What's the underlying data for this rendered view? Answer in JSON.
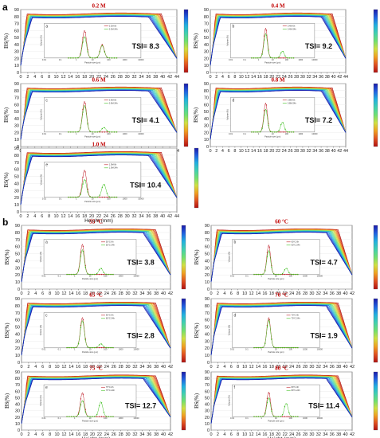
{
  "figure": {
    "section_labels": [
      "a",
      "b"
    ],
    "colorbar_colors": [
      "#1a1aa8",
      "#2060e0",
      "#20b0e0",
      "#40d0b0",
      "#70e070",
      "#d0e040",
      "#f0a020",
      "#e05020",
      "#b01010"
    ],
    "inset_marker_colors": {
      "zero_h": "#c0202a",
      "twentyfour_h": "#40c020"
    }
  },
  "chart_data": [
    {
      "type": "line",
      "section": "a",
      "panel_title": "0.2 M",
      "inset_letter": "a",
      "tsi_label": "TSI= 8.3",
      "xlabel": "",
      "ylabel": "BS(%)",
      "x_ticks": [
        0,
        2,
        4,
        6,
        8,
        10,
        12,
        14,
        16,
        18,
        20,
        22,
        24,
        26,
        28,
        30,
        32,
        34,
        36,
        38,
        40,
        42,
        44
      ],
      "y_ticks": [
        0,
        10,
        20,
        30,
        40,
        50,
        60,
        70,
        80,
        90
      ],
      "xlim": [
        0,
        44
      ],
      "ylim": [
        0,
        90
      ],
      "inset": {
        "type": "line",
        "xlabel": "Particle size (μm)",
        "ylabel": "Volume (%)",
        "x_ticks": [
          "0.01",
          "0.1",
          "1",
          "10",
          "100",
          "1000",
          "10000"
        ],
        "legend": [
          "0.2M-0h",
          "0.2M-24h"
        ],
        "series": [
          {
            "name": "0.2M-0h",
            "peaks": [
              {
                "x_log10": 0.5,
                "y": 7.2
              },
              {
                "x_log10": 1.6,
                "y": 3.5
              }
            ]
          },
          {
            "name": "0.2M-24h",
            "peaks": [
              {
                "x_log10": 0.5,
                "y": 5.6
              },
              {
                "x_log10": 1.6,
                "y": 3.2
              }
            ]
          }
        ]
      }
    },
    {
      "type": "line",
      "section": "a",
      "panel_title": "0.4 M",
      "inset_letter": "b",
      "tsi_label": "TSI= 9.2",
      "xlabel": "",
      "ylabel": "BS(%)",
      "x_ticks": [
        0,
        2,
        4,
        6,
        8,
        10,
        12,
        14,
        16,
        18,
        20,
        22,
        24,
        26,
        28,
        30,
        32,
        34,
        36,
        38,
        40,
        42,
        44
      ],
      "y_ticks": [
        0,
        10,
        20,
        30,
        40,
        50,
        60,
        70,
        80,
        90
      ],
      "xlim": [
        0,
        44
      ],
      "ylim": [
        0,
        90
      ],
      "inset": {
        "type": "line",
        "xlabel": "Particle size (μm)",
        "ylabel": "Volume (%)",
        "x_ticks": [
          "0.01",
          "0.1",
          "1",
          "10",
          "100",
          "1000",
          "10000"
        ],
        "legend": [
          "0.4M-0h",
          "0.4M-24h"
        ],
        "series": [
          {
            "name": "0.4M-0h",
            "peaks": [
              {
                "x_log10": 0.5,
                "y": 7.8
              }
            ]
          },
          {
            "name": "0.4M-24h",
            "peaks": [
              {
                "x_log10": 0.5,
                "y": 6.4
              },
              {
                "x_log10": 1.7,
                "y": 1.8
              }
            ]
          }
        ]
      }
    },
    {
      "type": "line",
      "section": "a",
      "panel_title": "0.6 M",
      "inset_letter": "c",
      "tsi_label": "TSI= 4.1",
      "xlabel": "",
      "ylabel": "BS(%)",
      "x_ticks": [
        0,
        2,
        4,
        6,
        8,
        10,
        12,
        14,
        16,
        18,
        20,
        22,
        24,
        26,
        28,
        30,
        32,
        34,
        36,
        38,
        40,
        42,
        44
      ],
      "y_ticks": [
        0,
        10,
        20,
        30,
        40,
        50,
        60,
        70,
        80,
        90
      ],
      "xlim": [
        0,
        44
      ],
      "ylim": [
        0,
        90
      ],
      "inset": {
        "type": "line",
        "xlabel": "Particle size (μm)",
        "ylabel": "Volume (%)",
        "x_ticks": [
          "0.01",
          "0.1",
          "1",
          "10",
          "100",
          "1000",
          "10000"
        ],
        "legend": [
          "0.6M-0h",
          "0.6M-24h"
        ],
        "series": [
          {
            "name": "0.6M-0h",
            "peaks": [
              {
                "x_log10": 0.5,
                "y": 8.0
              }
            ]
          },
          {
            "name": "0.6M-24h",
            "peaks": [
              {
                "x_log10": 0.5,
                "y": 7.0
              },
              {
                "x_log10": 1.7,
                "y": 1.2
              }
            ]
          }
        ]
      }
    },
    {
      "type": "line",
      "section": "a",
      "panel_title": "0.8 M",
      "inset_letter": "d",
      "tsi_label": "TSI= 7.2",
      "xlabel": "",
      "ylabel": "BS(%)",
      "x_ticks": [
        0,
        2,
        4,
        6,
        8,
        10,
        12,
        14,
        16,
        18,
        20,
        22,
        24,
        26,
        28,
        30,
        32,
        34,
        36,
        38,
        40,
        42,
        44
      ],
      "y_ticks": [
        0,
        10,
        20,
        30,
        40,
        50,
        60,
        70,
        80,
        90
      ],
      "xlim": [
        0,
        44
      ],
      "ylim": [
        0,
        90
      ],
      "inset": {
        "type": "line",
        "xlabel": "Particle size (μm)",
        "ylabel": "Volume (%)",
        "x_ticks": [
          "0.01",
          "0.1",
          "1",
          "10",
          "100",
          "1000",
          "10000"
        ],
        "legend": [
          "0.8M-0h",
          "0.8M-24h"
        ],
        "series": [
          {
            "name": "0.8M-0h",
            "peaks": [
              {
                "x_log10": 0.5,
                "y": 7.6
              }
            ]
          },
          {
            "name": "0.8M-24h",
            "peaks": [
              {
                "x_log10": 0.5,
                "y": 6.0
              },
              {
                "x_log10": 1.7,
                "y": 2.6
              }
            ]
          }
        ]
      }
    },
    {
      "type": "line",
      "section": "a",
      "panel_title": "1.0 M",
      "inset_letter": "e",
      "tsi_label": "TSI= 10.4",
      "xlabel": "Height (mm)",
      "ylabel": "BS(%)",
      "x_ticks": [
        0,
        2,
        4,
        6,
        8,
        10,
        12,
        14,
        16,
        18,
        20,
        22,
        24,
        26,
        28,
        30,
        32,
        34,
        36,
        38,
        40,
        42,
        44
      ],
      "y_ticks": [
        0,
        10,
        20,
        30,
        40,
        50,
        60,
        70,
        80,
        90
      ],
      "xlim": [
        0,
        44
      ],
      "ylim": [
        0,
        90
      ],
      "inset": {
        "type": "line",
        "xlabel": "Particle size (μm)",
        "ylabel": "Volume (%)",
        "x_ticks": [
          "0.01",
          "0.1",
          "1",
          "10",
          "100",
          "1000",
          "10000"
        ],
        "legend": [
          "1.0M-0h",
          "1.0M-24h"
        ],
        "series": [
          {
            "name": "1.0M-0h",
            "peaks": [
              {
                "x_log10": 0.5,
                "y": 7.0
              }
            ]
          },
          {
            "name": "1.0M-24h",
            "peaks": [
              {
                "x_log10": 0.5,
                "y": 4.6
              },
              {
                "x_log10": 1.7,
                "y": 3.4
              }
            ]
          }
        ]
      }
    },
    {
      "type": "line",
      "section": "b",
      "panel_title": "55 °C",
      "inset_letter": "a",
      "tsi_label": "TSI= 3.8",
      "xlabel": "",
      "ylabel": "BS(%)",
      "x_ticks": [
        0,
        2,
        4,
        6,
        8,
        10,
        12,
        14,
        16,
        18,
        20,
        22,
        24,
        26,
        28,
        30,
        32,
        34,
        36,
        38,
        40,
        42
      ],
      "y_ticks": [
        0,
        10,
        20,
        30,
        40,
        50,
        60,
        70,
        80,
        90
      ],
      "xlim": [
        0,
        42
      ],
      "ylim": [
        0,
        90
      ],
      "inset": {
        "type": "line",
        "xlabel": "Particle size (μm)",
        "ylabel": "Volume (%)",
        "x_ticks": [
          "0.01",
          "0.1",
          "1",
          "10",
          "100",
          "1000",
          "10000"
        ],
        "legend": [
          "55°C-0h",
          "55°C-24h"
        ],
        "series": [
          {
            "name": "55°C-0h",
            "peaks": [
              {
                "x_log10": 0.5,
                "y": 7.8
              }
            ]
          },
          {
            "name": "55°C-24h",
            "peaks": [
              {
                "x_log10": 0.5,
                "y": 6.4
              },
              {
                "x_log10": 1.7,
                "y": 1.6
              }
            ]
          }
        ]
      }
    },
    {
      "type": "line",
      "section": "b",
      "panel_title": "60 °C",
      "inset_letter": "b",
      "tsi_label": "TSI= 4.7",
      "xlabel": "",
      "ylabel": "BS(%)",
      "x_ticks": [
        0,
        2,
        4,
        6,
        8,
        10,
        12,
        14,
        16,
        18,
        20,
        22,
        24,
        26,
        28,
        30,
        32,
        34,
        36,
        38,
        40,
        42
      ],
      "y_ticks": [
        0,
        10,
        20,
        30,
        40,
        50,
        60,
        70,
        80,
        90
      ],
      "xlim": [
        0,
        42
      ],
      "ylim": [
        0,
        90
      ],
      "inset": {
        "type": "line",
        "xlabel": "Particle size (μm)",
        "ylabel": "Volume (%)",
        "x_ticks": [
          "0.01",
          "0.1",
          "1",
          "10",
          "100",
          "1000",
          "10000"
        ],
        "legend": [
          "60°C-0h",
          "60°C-24h"
        ],
        "series": [
          {
            "name": "60°C-0h",
            "peaks": [
              {
                "x_log10": 0.5,
                "y": 7.6
              }
            ]
          },
          {
            "name": "60°C-24h",
            "peaks": [
              {
                "x_log10": 0.5,
                "y": 6.2
              },
              {
                "x_log10": 1.7,
                "y": 1.6
              }
            ]
          }
        ]
      }
    },
    {
      "type": "line",
      "section": "b",
      "panel_title": "65 °C",
      "inset_letter": "c",
      "tsi_label": "TSI= 2.8",
      "xlabel": "",
      "ylabel": "BS(%)",
      "x_ticks": [
        0,
        2,
        4,
        6,
        8,
        10,
        12,
        14,
        16,
        18,
        20,
        22,
        24,
        26,
        28,
        30,
        32,
        34,
        36,
        38,
        40,
        42
      ],
      "y_ticks": [
        0,
        10,
        20,
        30,
        40,
        50,
        60,
        70,
        80,
        90
      ],
      "xlim": [
        0,
        42
      ],
      "ylim": [
        0,
        90
      ],
      "inset": {
        "type": "line",
        "xlabel": "Particle size (μm)",
        "ylabel": "Volume (%)",
        "x_ticks": [
          "0.01",
          "0.1",
          "1",
          "10",
          "100",
          "1000",
          "10000"
        ],
        "legend": [
          "65°C-0h",
          "65°C-24h"
        ],
        "series": [
          {
            "name": "65°C-0h",
            "peaks": [
              {
                "x_log10": 0.5,
                "y": 7.8
              }
            ]
          },
          {
            "name": "65°C-24h",
            "peaks": [
              {
                "x_log10": 0.5,
                "y": 7.0
              },
              {
                "x_log10": 1.7,
                "y": 1.0
              }
            ]
          }
        ]
      }
    },
    {
      "type": "line",
      "section": "b",
      "panel_title": "70 °C",
      "inset_letter": "d",
      "tsi_label": "TSI= 1.9",
      "xlabel": "",
      "ylabel": "BS(%)",
      "x_ticks": [
        0,
        2,
        4,
        6,
        8,
        10,
        12,
        14,
        16,
        18,
        20,
        22,
        24,
        26,
        28,
        30,
        32,
        34,
        36,
        38,
        40,
        42
      ],
      "y_ticks": [
        0,
        10,
        20,
        30,
        40,
        50,
        60,
        70,
        80,
        90
      ],
      "xlim": [
        0,
        42
      ],
      "ylim": [
        0,
        90
      ],
      "inset": {
        "type": "line",
        "xlabel": "Particle size (μm)",
        "ylabel": "Volume (%)",
        "x_ticks": [
          "0.01",
          "0.1",
          "1",
          "10",
          "100",
          "1000",
          "10000"
        ],
        "legend": [
          "70°C-0h",
          "70°C-24h"
        ],
        "series": [
          {
            "name": "70°C-0h",
            "peaks": [
              {
                "x_log10": 0.5,
                "y": 7.8
              }
            ]
          },
          {
            "name": "70°C-24h",
            "peaks": [
              {
                "x_log10": 0.5,
                "y": 7.2
              }
            ]
          }
        ]
      }
    },
    {
      "type": "line",
      "section": "b",
      "panel_title": "75 °C",
      "inset_letter": "e",
      "tsi_label": "TSI= 12.7",
      "xlabel": "Height (mm)",
      "ylabel": "BS(%)",
      "x_ticks": [
        0,
        2,
        4,
        6,
        8,
        10,
        12,
        14,
        16,
        18,
        20,
        22,
        24,
        26,
        28,
        30,
        32,
        34,
        36,
        38,
        40,
        42
      ],
      "y_ticks": [
        0,
        10,
        20,
        30,
        40,
        50,
        60,
        70,
        80,
        90
      ],
      "xlim": [
        0,
        42
      ],
      "ylim": [
        0,
        90
      ],
      "inset": {
        "type": "line",
        "xlabel": "Particle size (μm)",
        "ylabel": "Volume (%)",
        "x_ticks": [
          "0.01",
          "0.1",
          "1",
          "10",
          "100",
          "1000",
          "10000"
        ],
        "legend": [
          "75°C-0h",
          "75°C-24h"
        ],
        "series": [
          {
            "name": "75°C-0h",
            "peaks": [
              {
                "x_log10": 0.5,
                "y": 6.8
              }
            ]
          },
          {
            "name": "75°C-24h",
            "peaks": [
              {
                "x_log10": 0.5,
                "y": 4.6
              },
              {
                "x_log10": 1.7,
                "y": 4.2
              }
            ]
          }
        ]
      }
    },
    {
      "type": "line",
      "section": "b",
      "panel_title": "80 °C",
      "inset_letter": "f",
      "tsi_label": "TSI= 11.4",
      "xlabel": "Height (mm)",
      "ylabel": "BS(%)",
      "x_ticks": [
        0,
        2,
        4,
        6,
        8,
        10,
        12,
        14,
        16,
        18,
        20,
        22,
        24,
        26,
        28,
        30,
        32,
        34,
        36,
        38,
        40,
        42
      ],
      "y_ticks": [
        0,
        10,
        20,
        30,
        40,
        50,
        60,
        70,
        80,
        90
      ],
      "xlim": [
        0,
        42
      ],
      "ylim": [
        0,
        90
      ],
      "inset": {
        "type": "line",
        "xlabel": "Particle size (μm)",
        "ylabel": "Volume (%)",
        "x_ticks": [
          "0.01",
          "0.1",
          "1",
          "10",
          "100",
          "1000",
          "10000"
        ],
        "legend": [
          "80°C-0h",
          "80°C-24h"
        ],
        "series": [
          {
            "name": "80°C-0h",
            "peaks": [
              {
                "x_log10": 0.5,
                "y": 7.0
              }
            ]
          },
          {
            "name": "80°C-24h",
            "peaks": [
              {
                "x_log10": 0.5,
                "y": 5.4
              },
              {
                "x_log10": 1.7,
                "y": 3.8
              }
            ]
          }
        ]
      }
    }
  ]
}
